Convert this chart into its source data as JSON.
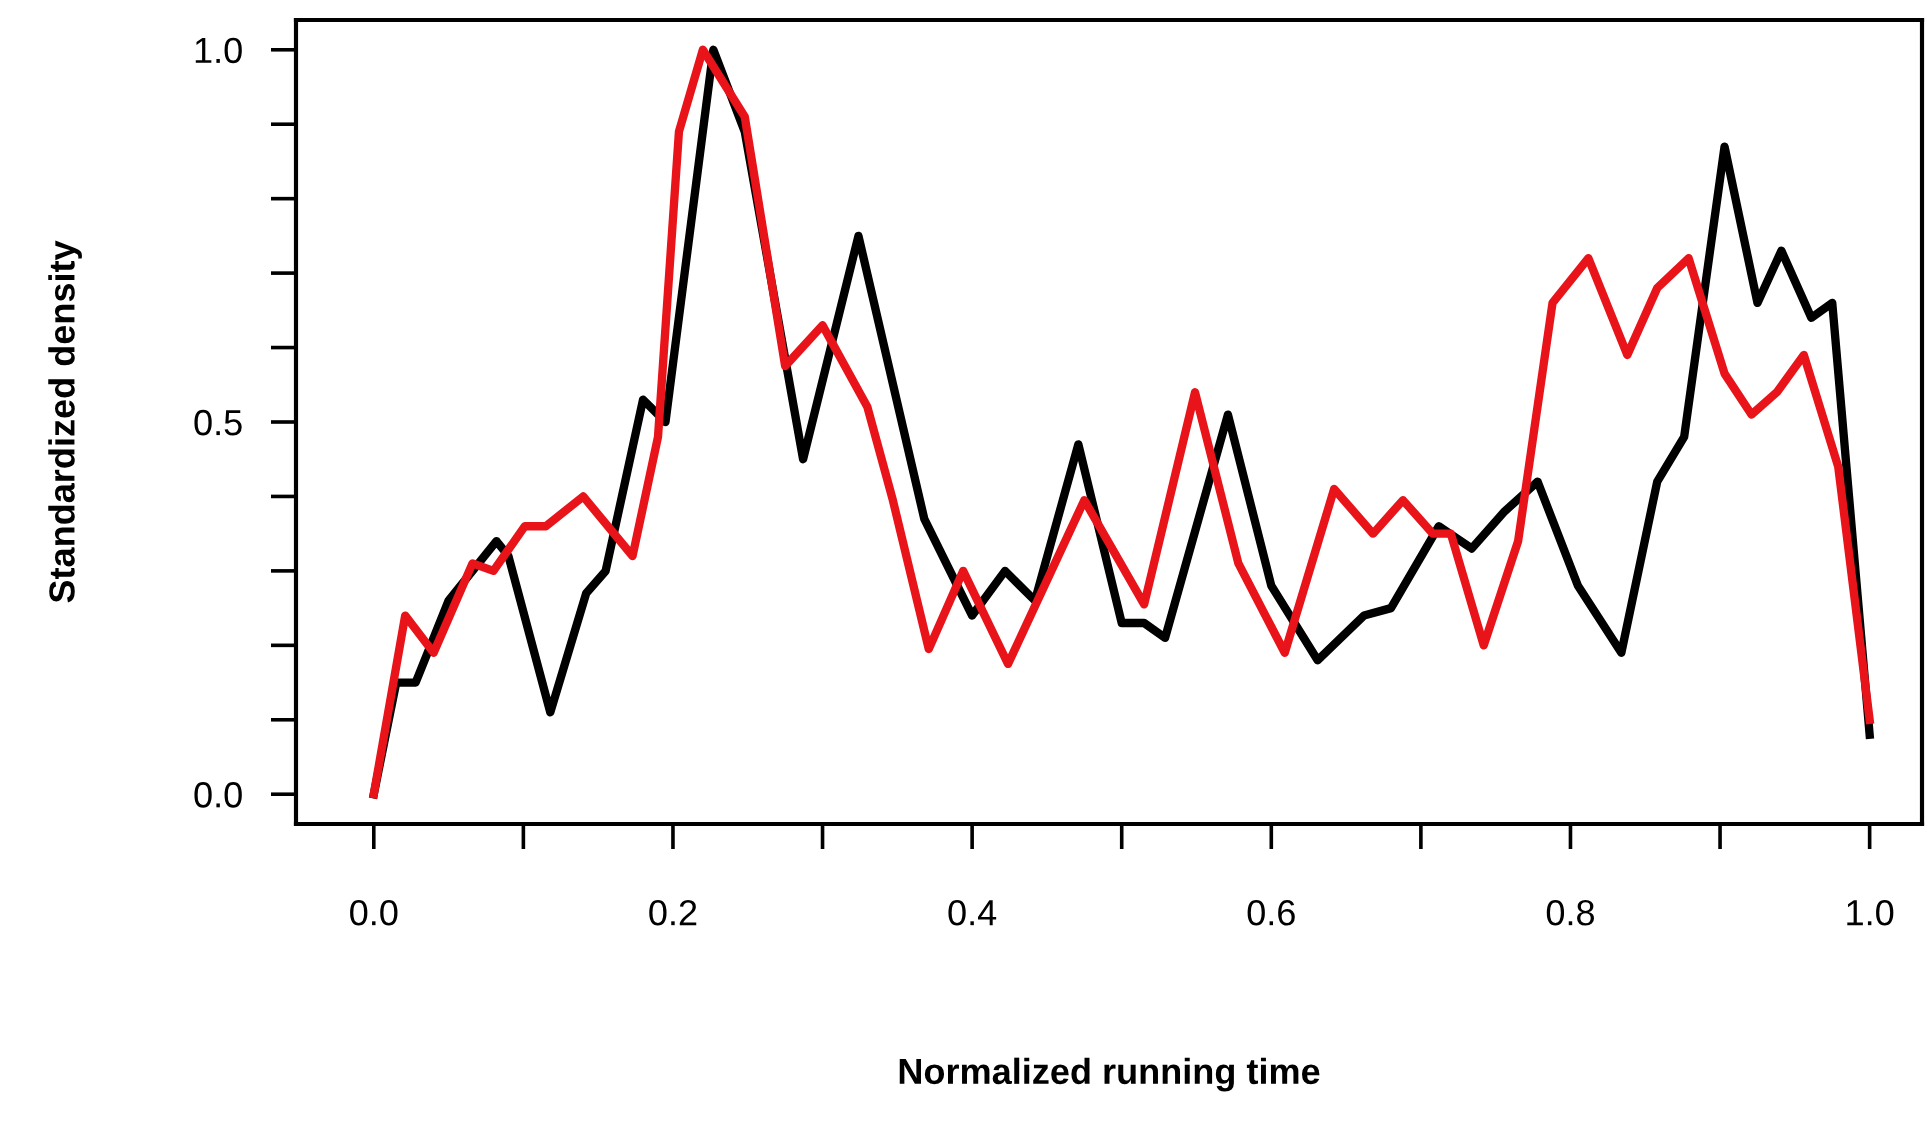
{
  "chart_data": {
    "type": "line",
    "xlabel": "Normalized running time",
    "ylabel": "Standardized density",
    "xlim": [
      -0.052,
      1.035
    ],
    "ylim": [
      -0.04,
      1.04
    ],
    "xticks": [
      {
        "value": 0.0,
        "label": "0.0"
      },
      {
        "value": 0.1,
        "label": null
      },
      {
        "value": 0.2,
        "label": "0.2"
      },
      {
        "value": 0.3,
        "label": null
      },
      {
        "value": 0.4,
        "label": "0.4"
      },
      {
        "value": 0.5,
        "label": null
      },
      {
        "value": 0.6,
        "label": "0.6"
      },
      {
        "value": 0.7,
        "label": null
      },
      {
        "value": 0.8,
        "label": "0.8"
      },
      {
        "value": 0.9,
        "label": null
      },
      {
        "value": 1.0,
        "label": "1.0"
      }
    ],
    "yticks": [
      {
        "value": 0.0,
        "label": "0.0"
      },
      {
        "value": 0.1,
        "label": null
      },
      {
        "value": 0.2,
        "label": null
      },
      {
        "value": 0.3,
        "label": null
      },
      {
        "value": 0.4,
        "label": null
      },
      {
        "value": 0.5,
        "label": "0.5"
      },
      {
        "value": 0.6,
        "label": null
      },
      {
        "value": 0.7,
        "label": null
      },
      {
        "value": 0.8,
        "label": null
      },
      {
        "value": 0.9,
        "label": null
      },
      {
        "value": 1.0,
        "label": "1.0"
      }
    ],
    "grid": false,
    "marker": "none",
    "line_style": "solid",
    "series": [
      {
        "color": "#000000",
        "x": [
          0,
          0.015,
          0.028,
          0.05,
          0.082,
          0.09,
          0.118,
          0.142,
          0.155,
          0.18,
          0.195,
          0.227,
          0.248,
          0.287,
          0.324,
          0.368,
          0.4,
          0.422,
          0.442,
          0.471,
          0.5,
          0.515,
          0.529,
          0.571,
          0.6,
          0.631,
          0.662,
          0.68,
          0.712,
          0.734,
          0.756,
          0.778,
          0.805,
          0.834,
          0.858,
          0.876,
          0.903,
          0.925,
          0.941,
          0.961,
          0.975,
          1.0
        ],
        "values": [
          0,
          0.15,
          0.15,
          0.26,
          0.34,
          0.32,
          0.11,
          0.27,
          0.3,
          0.53,
          0.5,
          1.0,
          0.89,
          0.45,
          0.75,
          0.37,
          0.24,
          0.3,
          0.26,
          0.47,
          0.23,
          0.23,
          0.21,
          0.51,
          0.28,
          0.18,
          0.24,
          0.25,
          0.36,
          0.33,
          0.38,
          0.42,
          0.28,
          0.19,
          0.42,
          0.48,
          0.87,
          0.66,
          0.73,
          0.64,
          0.66,
          0.08
        ]
      },
      {
        "color": "#e8141a",
        "x": [
          0,
          0.021,
          0.04,
          0.066,
          0.08,
          0.101,
          0.115,
          0.14,
          0.173,
          0.19,
          0.204,
          0.22,
          0.248,
          0.275,
          0.3,
          0.33,
          0.347,
          0.371,
          0.394,
          0.424,
          0.475,
          0.515,
          0.549,
          0.578,
          0.609,
          0.642,
          0.668,
          0.688,
          0.708,
          0.72,
          0.742,
          0.765,
          0.788,
          0.812,
          0.838,
          0.858,
          0.879,
          0.903,
          0.921,
          0.938,
          0.956,
          0.979,
          1.0
        ],
        "values": [
          0,
          0.24,
          0.19,
          0.31,
          0.3,
          0.36,
          0.36,
          0.4,
          0.32,
          0.48,
          0.89,
          1.0,
          0.91,
          0.575,
          0.63,
          0.52,
          0.395,
          0.195,
          0.3,
          0.175,
          0.395,
          0.255,
          0.54,
          0.31,
          0.19,
          0.41,
          0.35,
          0.395,
          0.35,
          0.35,
          0.2,
          0.34,
          0.66,
          0.72,
          0.59,
          0.68,
          0.72,
          0.565,
          0.51,
          0.54,
          0.59,
          0.44,
          0.1
        ]
      }
    ]
  }
}
